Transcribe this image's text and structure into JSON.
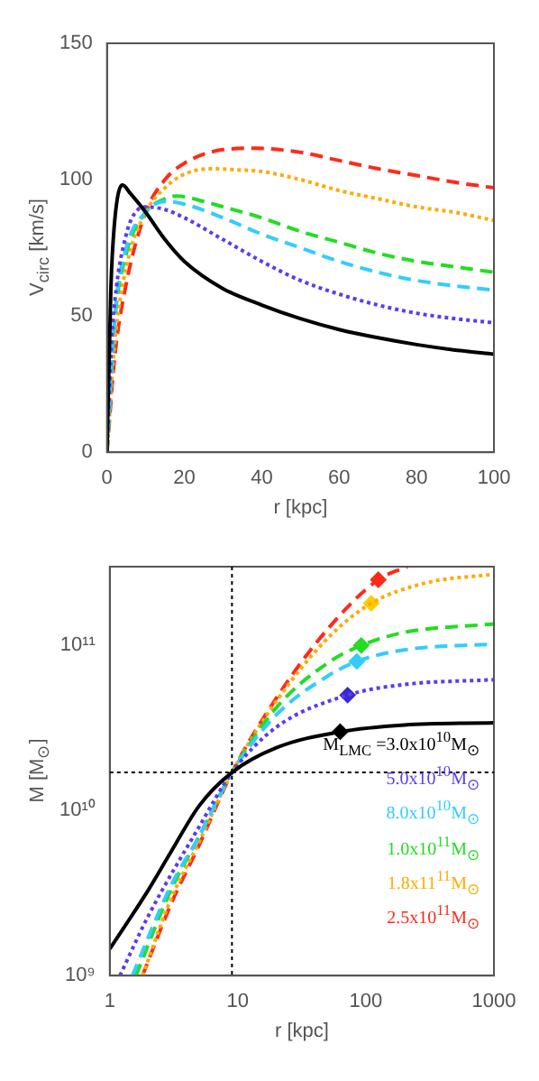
{
  "chart_data": [
    {
      "type": "line",
      "xlabel": "r [kpc]",
      "ylabel": "V$_{circ}$ [km/s]",
      "xlim": [
        0,
        100
      ],
      "ylim": [
        0,
        150
      ],
      "xticks": [
        0,
        20,
        40,
        60,
        80,
        100
      ],
      "yticks": [
        0,
        50,
        100,
        150
      ],
      "grid": false,
      "legend": false,
      "series": [
        {
          "color": "#000000",
          "line_style": "solid",
          "x": [
            0,
            1,
            2,
            4,
            6,
            10,
            15,
            20,
            30,
            40,
            50,
            60,
            70,
            80,
            90,
            100
          ],
          "values": [
            0,
            60,
            85,
            98,
            95,
            88,
            78,
            70,
            60,
            54,
            49,
            45,
            42,
            39.5,
            37.5,
            36
          ]
        },
        {
          "color": "#5a3cf0",
          "line_style": "dotted",
          "x": [
            0,
            1,
            2,
            5,
            8,
            10,
            15,
            20,
            30,
            40,
            50,
            60,
            70,
            80,
            90,
            100
          ],
          "values": [
            0,
            35,
            55,
            80,
            89,
            90,
            89,
            86,
            78,
            70,
            63,
            58,
            54,
            51,
            49,
            47.5
          ]
        },
        {
          "color": "#33ccff",
          "line_style": "dashed",
          "x": [
            0,
            2,
            5,
            10,
            15,
            20,
            30,
            40,
            50,
            60,
            70,
            80,
            90,
            100
          ],
          "values": [
            0,
            50,
            75,
            88,
            92,
            91,
            86,
            80,
            75,
            70,
            66,
            63,
            61,
            59.5
          ]
        },
        {
          "color": "#22dd22",
          "line_style": "dashed",
          "x": [
            0,
            2,
            5,
            10,
            15,
            18,
            25,
            30,
            40,
            50,
            60,
            70,
            80,
            90,
            100
          ],
          "values": [
            0,
            48,
            73,
            88,
            93,
            94,
            92,
            90,
            86,
            81,
            77,
            73,
            70,
            68,
            66
          ]
        },
        {
          "color": "#ffaa00",
          "line_style": "dotted",
          "x": [
            0,
            2,
            5,
            10,
            15,
            20,
            27,
            35,
            40,
            50,
            60,
            70,
            80,
            90,
            100
          ],
          "values": [
            0,
            40,
            68,
            88,
            97,
            102,
            104,
            103.5,
            103,
            100,
            96,
            93,
            90,
            88,
            85
          ]
        },
        {
          "color": "#ff2a1a",
          "line_style": "dashed",
          "x": [
            0,
            2,
            5,
            10,
            15,
            20,
            30,
            38,
            50,
            60,
            70,
            80,
            90,
            100
          ],
          "values": [
            0,
            35,
            62,
            88,
            100,
            106,
            111,
            111.5,
            110,
            107,
            104,
            101.5,
            99,
            97
          ]
        }
      ]
    },
    {
      "type": "line",
      "xlabel": "r [kpc]",
      "ylabel": "M [M$_{⊙}$]",
      "log": "xy",
      "xlim": [
        1,
        1000
      ],
      "ylim": [
        1000000000,
        300000000000
      ],
      "xticks": [
        1,
        10,
        100,
        1000
      ],
      "yticks": [
        {
          "value": 1000000000,
          "label": "10⁹"
        },
        {
          "value": 10000000000,
          "label": "10¹⁰"
        },
        {
          "value": 100000000000,
          "label": "10¹¹"
        }
      ],
      "grid": false,
      "legend": "bottom right",
      "ref_lines": [
        {
          "axis": "x",
          "value": 9,
          "line_style": "dotted",
          "color": "#000000"
        },
        {
          "axis": "y",
          "value": 17000000000,
          "line_style": "dotted",
          "color": "#000000"
        }
      ],
      "series": [
        {
          "name": "M$_{LMC}$ =3.0x10$^{10}$M$_{⊙}$",
          "color": "#000000",
          "line_style": "solid",
          "x": [
            1,
            2,
            3,
            5,
            9,
            20,
            63,
            200,
            1000
          ],
          "values": [
            1450000000,
            3300000000,
            5600000000,
            10700000000,
            17000000000,
            24000000000,
            30000000000,
            33000000000,
            34000000000
          ]
        },
        {
          "name": "5.0x10$^{10}$M$_{⊙}$",
          "color": "#5a3cf0",
          "line_style": "dotted",
          "x": [
            1.2,
            2,
            5,
            9,
            20,
            72,
            200,
            1000
          ],
          "values": [
            1000000000,
            2300000000,
            8000000000,
            17000000000,
            32000000000,
            50000000000,
            58000000000,
            62000000000
          ]
        },
        {
          "name": "8.0x10$^{10}$M$_{⊙}$",
          "color": "#33ccff",
          "line_style": "dashed",
          "x": [
            1.5,
            3,
            5,
            9,
            20,
            50,
            85,
            200,
            1000
          ],
          "values": [
            1000000000,
            3500000000,
            7000000000,
            17000000000,
            38000000000,
            65000000000,
            80000000000,
            94000000000,
            102000000000
          ]
        },
        {
          "name": "1.0x10$^{11}$M$_{⊙}$",
          "color": "#22dd22",
          "line_style": "dashed",
          "x": [
            1.6,
            3,
            5,
            9,
            20,
            50,
            92,
            200,
            1000
          ],
          "values": [
            1000000000,
            3300000000,
            7000000000,
            17000000000,
            42000000000,
            78000000000,
            100000000000,
            120000000000,
            135000000000
          ]
        },
        {
          "name": "1.8x11$^{11}$M$_{⊙}$",
          "color": "#ffaa00",
          "line_style": "dotted",
          "x": [
            1.8,
            3,
            5,
            9,
            20,
            50,
            110,
            300,
            1000
          ],
          "values": [
            1000000000,
            2900000000,
            6500000000,
            17000000000,
            46000000000,
            110000000000,
            180000000000,
            240000000000,
            270000000000
          ]
        },
        {
          "name": "2.5x10$^{11}$M$_{⊙}$",
          "color": "#ff2a1a",
          "line_style": "dashed",
          "x": [
            1.8,
            3,
            5,
            9,
            20,
            50,
            125,
            210
          ],
          "values": [
            1000000000,
            2700000000,
            6200000000,
            17000000000,
            48000000000,
            125000000000,
            250000000000,
            300000000000
          ]
        },
        {
          "type": "scatter",
          "marker": "diamond",
          "x": [
            63,
            72,
            85,
            92,
            110,
            125
          ],
          "values": [
            30000000000,
            50000000000,
            80000000000,
            100000000000,
            180000000000,
            250000000000
          ],
          "colors": [
            "#000000",
            "#3a2ad0",
            "#33ccff",
            "#22dd22",
            "#ffcc00",
            "#ff2a1a"
          ]
        }
      ]
    }
  ]
}
